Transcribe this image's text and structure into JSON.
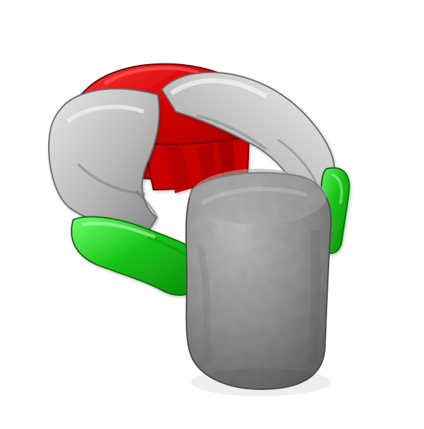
{
  "scene": {
    "background": "#ffffff",
    "palette": {
      "red_part": "#d40000",
      "red_dark": "#8c0000",
      "red_light": "#ff3b3b",
      "gray_shell": "#b8b8b8",
      "gray_shell_dark": "#8a8a8a",
      "gray_shell_light": "#e2e2e2",
      "green_part": "#19c419",
      "green_dark": "#0a8a0a",
      "green_light": "#6dff6d",
      "object_gray": "#8f8f8f",
      "object_dark": "#5e5e5e",
      "object_light": "#b7b7b7"
    },
    "objects": [
      "robot-gripper-red-core",
      "robot-gripper-gray-fingers",
      "robot-gripper-green-pads",
      "grasped-cylinder-object"
    ]
  }
}
